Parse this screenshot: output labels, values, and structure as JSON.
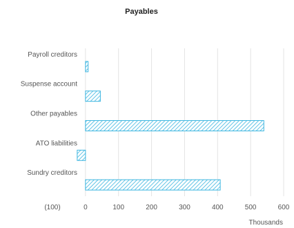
{
  "chart_data": {
    "type": "bar",
    "orientation": "horizontal",
    "title": "Payables",
    "categories": [
      "Payroll creditors",
      "Suspense account",
      "Other payables",
      "ATO liabilities",
      "Sundry creditors"
    ],
    "values": [
      8,
      45,
      540,
      -25,
      408
    ],
    "xlim": [
      -100,
      600
    ],
    "xticks": [
      -100,
      0,
      100,
      200,
      300,
      400,
      500,
      600
    ],
    "xtick_labels": [
      "(100)",
      "0",
      "100",
      "200",
      "300",
      "400",
      "500",
      "600"
    ],
    "unit_label": "Thousands",
    "grid": true,
    "legend": "none",
    "bar_color": "#3bb5e0",
    "bar_pattern": "diagonal-hatch"
  }
}
